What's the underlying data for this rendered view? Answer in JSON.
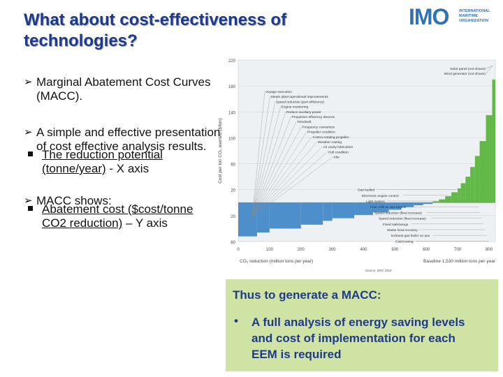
{
  "slide": {
    "title": "What about cost-effectiveness of technologies?",
    "logo": {
      "text": "IMO",
      "subtitle": "INTERNATIONAL MARITIME ORGANIZATION",
      "color": "#2f73b5"
    },
    "bullets": [
      {
        "icon": "arrow-bullet-icon",
        "text": "Marginal Abatement Cost Curves (MACC)."
      },
      {
        "icon": "arrow-bullet-icon",
        "text": "A simple and effective presentation of cost effective analysis results."
      },
      {
        "icon": "arrow-bullet-icon",
        "text": "MACC shows:"
      }
    ],
    "sub_bullets": [
      {
        "underlined": "The reduction potential (tonne/year)",
        "rest": " - X axis"
      },
      {
        "underlined": "Abatement cost ($cost/tonne CO2 reduction)",
        "rest": " – Y axis"
      }
    ],
    "box": {
      "title": "Thus to generate a MACC:",
      "bullet": "•",
      "text": "A full analysis of energy saving levels and cost of implementation for each EEM is required",
      "background": "#cfe3a4"
    },
    "source": "Source: DNV 2010"
  },
  "chart_data": {
    "type": "bar",
    "ylabel": "Cost per ton CO₂ averted ($/ton)",
    "xlabel": "CO₂ reduction (million tons per year)",
    "baseline_note": "Baseline 1,530 million tons per year",
    "xlim": [
      0,
      820
    ],
    "ylim": [
      -60,
      220
    ],
    "x_ticks": [
      0,
      100,
      200,
      300,
      400,
      500,
      600,
      700,
      800
    ],
    "y_ticks": [
      {
        "v": 220,
        "label": "220"
      },
      {
        "v": 180,
        "label": "180"
      },
      {
        "v": 140,
        "label": "140"
      },
      {
        "v": 100,
        "label": "100"
      },
      {
        "v": 60,
        "label": "60"
      },
      {
        "v": 20,
        "label": "20"
      },
      {
        "v": -20,
        "label": "20"
      },
      {
        "v": -60,
        "label": "60"
      }
    ],
    "negative_color": "#4d8fcb",
    "positive_color": "#63b947",
    "bars": [
      {
        "x0": 0,
        "x1": 60,
        "y": -52
      },
      {
        "x0": 60,
        "x1": 100,
        "y": -46
      },
      {
        "x0": 100,
        "x1": 200,
        "y": -40
      },
      {
        "x0": 200,
        "x1": 270,
        "y": -34
      },
      {
        "x0": 270,
        "x1": 300,
        "y": -28
      },
      {
        "x0": 300,
        "x1": 370,
        "y": -24
      },
      {
        "x0": 370,
        "x1": 430,
        "y": -19
      },
      {
        "x0": 430,
        "x1": 480,
        "y": -15
      },
      {
        "x0": 480,
        "x1": 520,
        "y": -11
      },
      {
        "x0": 520,
        "x1": 560,
        "y": -7
      },
      {
        "x0": 560,
        "x1": 590,
        "y": -4
      },
      {
        "x0": 590,
        "x1": 620,
        "y": -2
      },
      {
        "x0": 620,
        "x1": 640,
        "y": 2
      },
      {
        "x0": 640,
        "x1": 660,
        "y": 5
      },
      {
        "x0": 660,
        "x1": 680,
        "y": 10
      },
      {
        "x0": 680,
        "x1": 700,
        "y": 16
      },
      {
        "x0": 700,
        "x1": 710,
        "y": 22
      },
      {
        "x0": 710,
        "x1": 725,
        "y": 30
      },
      {
        "x0": 725,
        "x1": 740,
        "y": 40
      },
      {
        "x0": 740,
        "x1": 755,
        "y": 55
      },
      {
        "x0": 755,
        "x1": 770,
        "y": 72
      },
      {
        "x0": 770,
        "x1": 790,
        "y": 95
      },
      {
        "x0": 790,
        "x1": 810,
        "y": 135
      },
      {
        "x0": 810,
        "x1": 820,
        "y": 190
      }
    ],
    "annotations_positive": [
      "Voyage execution",
      "Steam plant operational improvements",
      "Speed reduction (port efficiency)",
      "Engine monitoring",
      "Reduce auxiliary power",
      "Propulsion efficiency devices",
      "Trim/draft",
      "Frequency converters",
      "Propeller condition",
      "Contra-rotating propeller",
      "Weather routing",
      "Air cavity lubrication",
      "Hull condition",
      "Kite"
    ],
    "annotations_negative": [
      "Gas fuelled",
      "Electronic engine control",
      "Light system",
      "Fuel cells as aux engine",
      "Speed reduction (fleet increase)",
      "Speed reduction (fleet increase)",
      "Fixed sails/wings",
      "Waste heat recovery",
      "Exhaust gas boiler on aux",
      "Cold ironing"
    ],
    "annotations_top": [
      "Solar panel (not shown)",
      "Wind generator (not shown)"
    ]
  }
}
